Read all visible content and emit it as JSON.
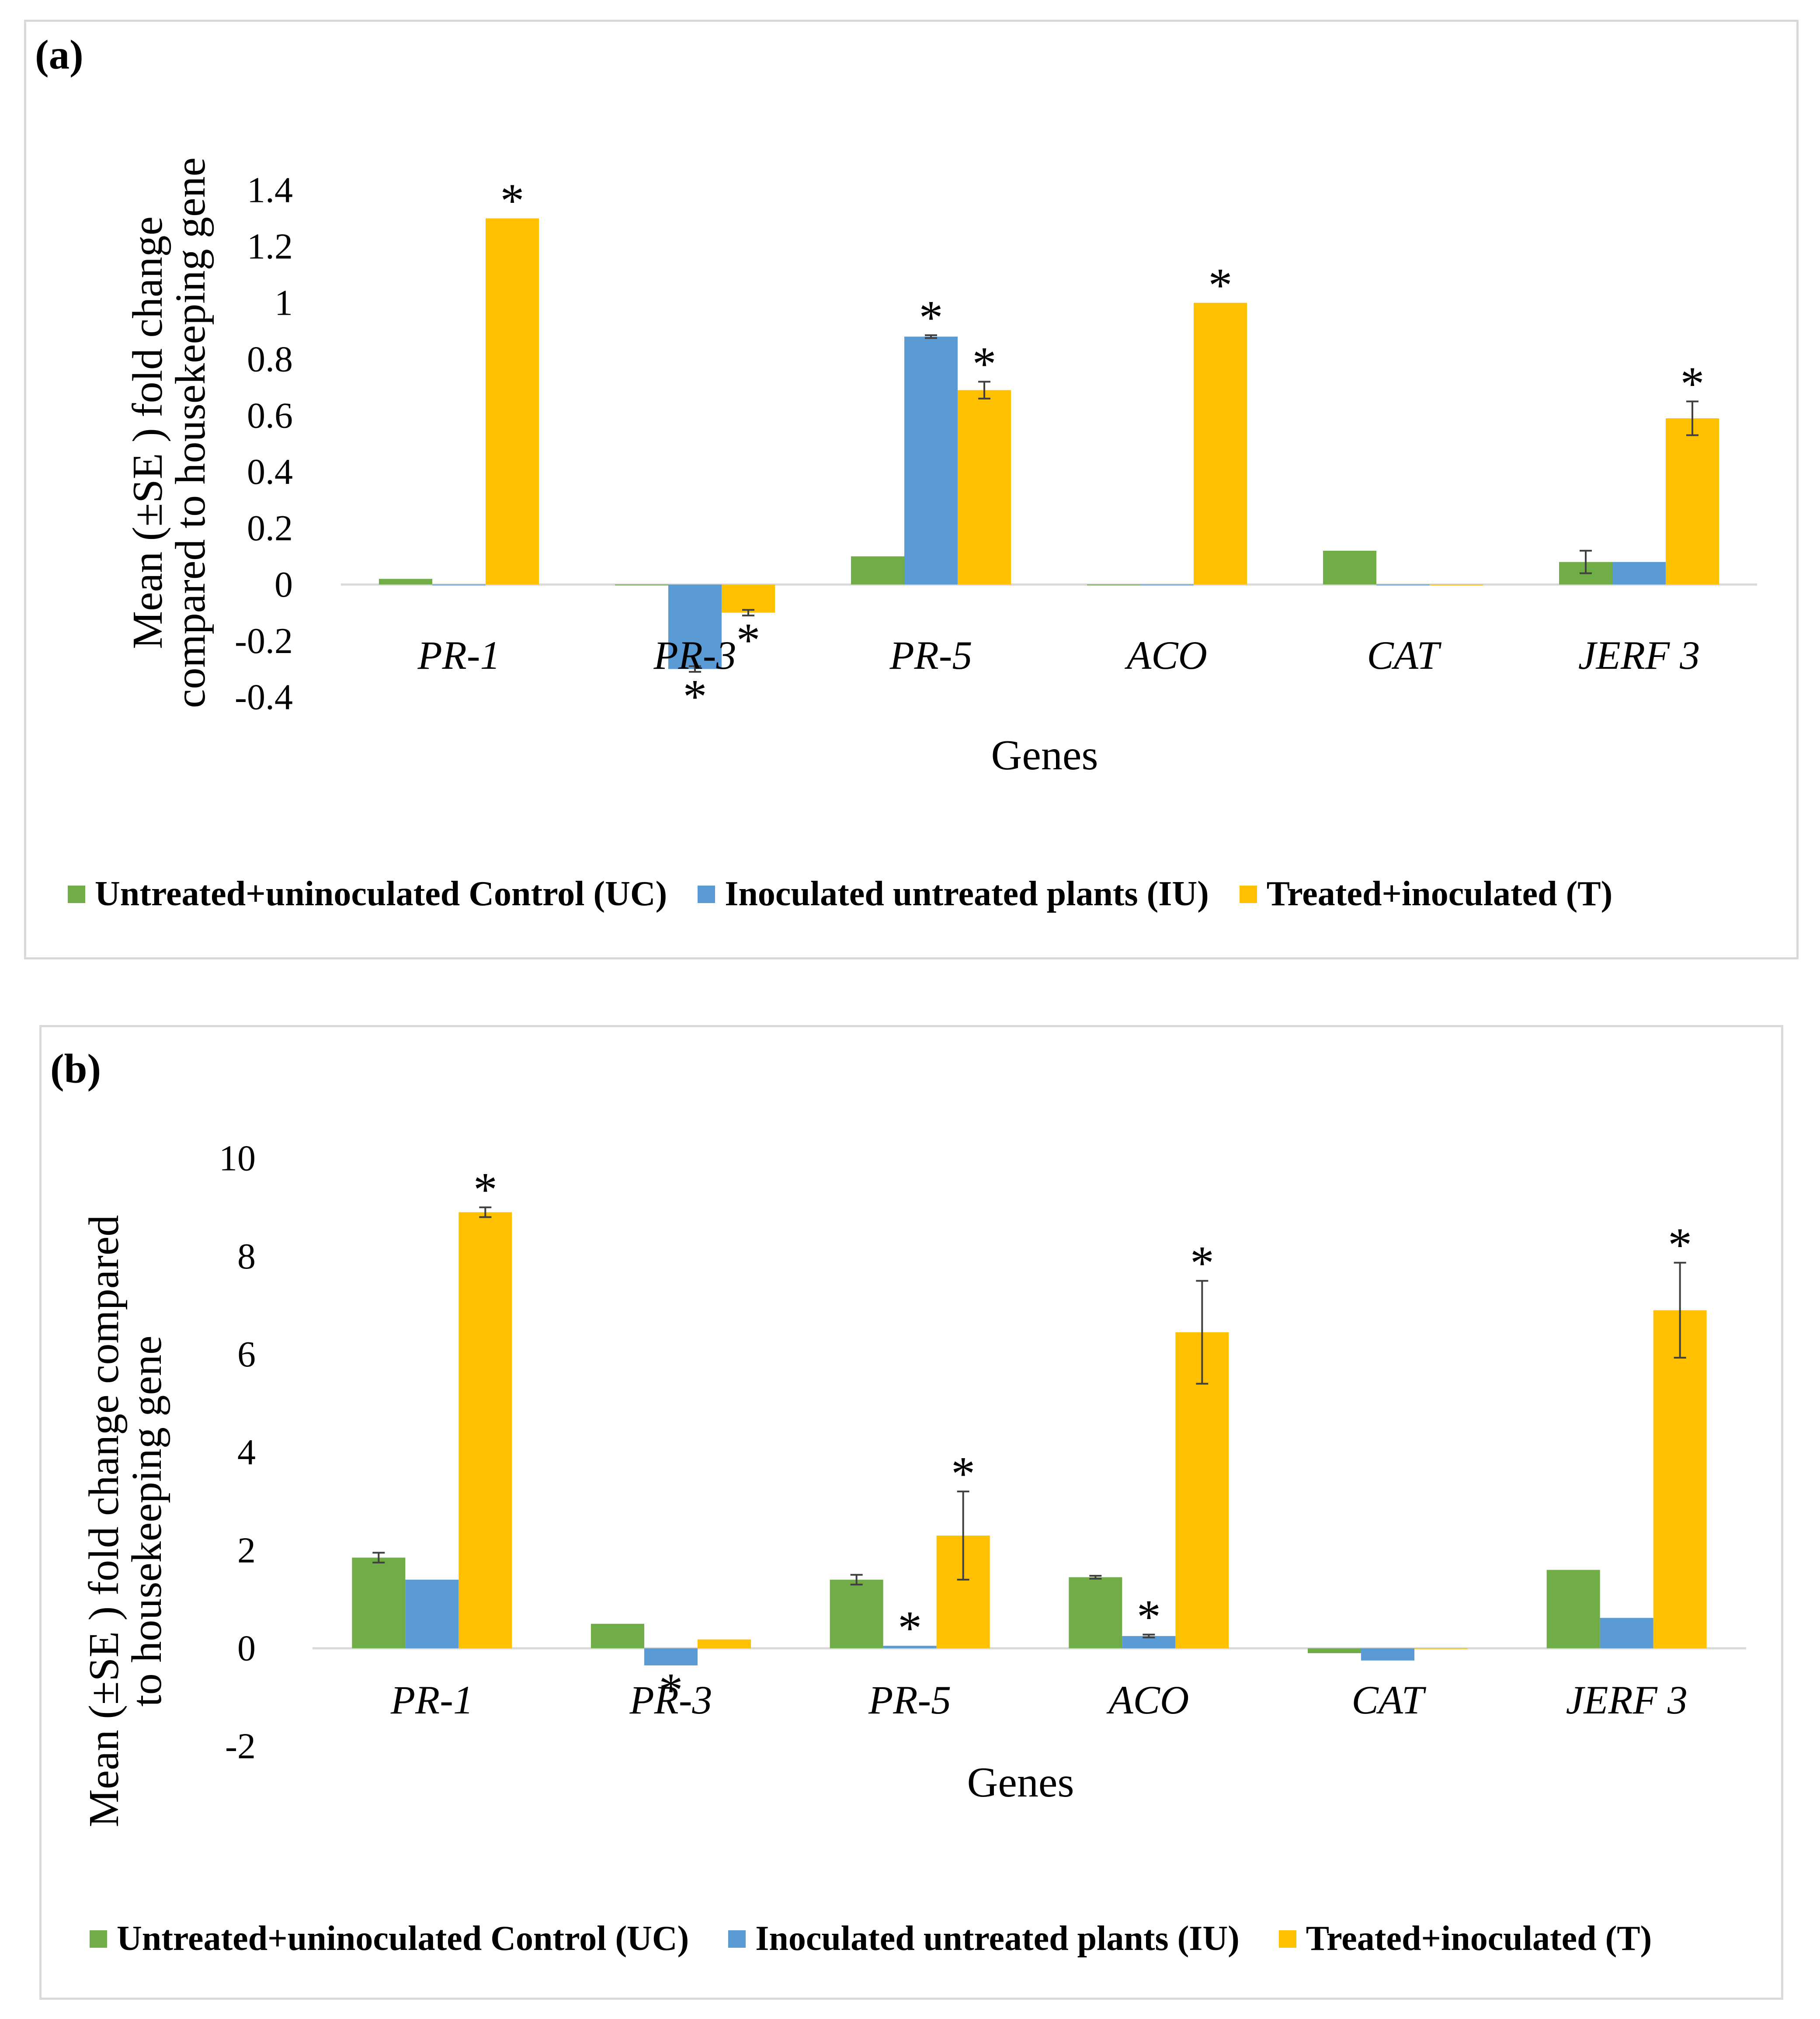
{
  "colors": {
    "uc": "#70ad47",
    "iu": "#5b9bd5",
    "t": "#ffc000",
    "axis": "#d9d9d9",
    "err": "#404040"
  },
  "chart_data": [
    {
      "type": "bar",
      "panel_label": "(a)",
      "ylabel_line1": "Mean (±SE ) fold change",
      "ylabel_line2": "compared to housekeeping gene",
      "xlabel": "Genes",
      "ylim": [
        -0.4,
        1.4
      ],
      "yticks": [
        -0.4,
        -0.2,
        0,
        0.2,
        0.4,
        0.6,
        0.8,
        1,
        1.2,
        1.4
      ],
      "ytick_labels": [
        "-0.4",
        "-0.2",
        "0",
        "0.2",
        "0.4",
        "0.6",
        "0.8",
        "1",
        "1.2",
        "1.4"
      ],
      "categories": [
        "PR-1",
        "PR-3",
        "PR-5",
        "ACO",
        "CAT",
        "JERF 3"
      ],
      "series": [
        {
          "name": "Untreated+uninoculated Control (UC)",
          "key": "uc",
          "values": [
            0.02,
            0,
            0.1,
            0,
            0.12,
            0.08
          ],
          "errors": [
            0,
            0,
            0,
            0,
            0,
            0.04
          ],
          "significant": [
            false,
            false,
            false,
            false,
            false,
            false
          ]
        },
        {
          "name": "Inoculated untreated plants (IU)",
          "key": "iu",
          "values": [
            0,
            -0.3,
            0.88,
            0,
            0,
            0.08
          ],
          "errors": [
            0,
            0.01,
            0.005,
            0,
            0,
            0
          ],
          "significant": [
            false,
            true,
            true,
            false,
            false,
            false
          ]
        },
        {
          "name": "Treated+inoculated (T)",
          "key": "t",
          "values": [
            1.3,
            -0.1,
            0.69,
            1.0,
            0,
            0.59
          ],
          "errors": [
            0,
            0.01,
            0.03,
            0,
            0,
            0.06
          ],
          "significant": [
            true,
            true,
            true,
            true,
            false,
            true
          ]
        }
      ],
      "legend_position": "bottom",
      "significance_marker": "*"
    },
    {
      "type": "bar",
      "panel_label": "(b)",
      "ylabel_line1": "Mean (±SE ) fold change compared",
      "ylabel_line2": "to housekeeping gene",
      "xlabel": "Genes",
      "ylim": [
        -2,
        10
      ],
      "yticks": [
        -2,
        0,
        2,
        4,
        6,
        8,
        10
      ],
      "ytick_labels": [
        "-2",
        "0",
        "2",
        "4",
        "6",
        "8",
        "10"
      ],
      "categories": [
        "PR-1",
        "PR-3",
        "PR-5",
        "ACO",
        "CAT",
        "JERF 3"
      ],
      "series": [
        {
          "name": "Untreated+uninoculated Control (UC)",
          "key": "uc",
          "values": [
            1.85,
            0.5,
            1.4,
            1.45,
            -0.1,
            1.6
          ],
          "errors": [
            0.1,
            0,
            0.1,
            0.03,
            0,
            0
          ],
          "significant": [
            false,
            false,
            false,
            false,
            false,
            false
          ]
        },
        {
          "name": "Inoculated untreated plants (IU)",
          "key": "iu",
          "values": [
            1.4,
            -0.35,
            0.05,
            0.25,
            -0.25,
            0.62
          ],
          "errors": [
            0,
            0,
            0,
            0.03,
            0,
            0
          ],
          "significant": [
            false,
            true,
            true,
            true,
            false,
            false
          ]
        },
        {
          "name": "Treated+inoculated (T)",
          "key": "t",
          "values": [
            8.9,
            0.18,
            2.3,
            6.45,
            0,
            6.9
          ],
          "errors": [
            0.1,
            0,
            0.9,
            1.05,
            0,
            0.97
          ],
          "significant": [
            true,
            false,
            true,
            true,
            false,
            true
          ]
        }
      ],
      "legend_position": "bottom",
      "significance_marker": "*"
    }
  ]
}
